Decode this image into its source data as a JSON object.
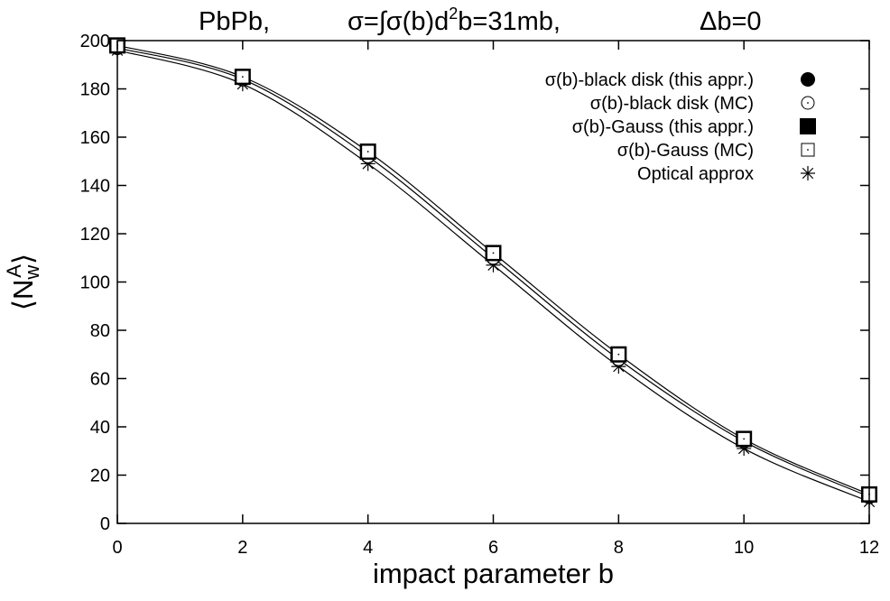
{
  "chart_data": {
    "type": "line",
    "title_parts": [
      "PbPb,",
      "σ=∫σ(b)d²b=31mb,",
      "Δb=0"
    ],
    "xlabel": "impact parameter b",
    "ylabel": "⟨N_w^A⟩",
    "xlim": [
      0,
      12
    ],
    "ylim": [
      0,
      200
    ],
    "x_ticks": [
      0,
      2,
      4,
      6,
      8,
      10,
      12
    ],
    "y_ticks": [
      0,
      20,
      40,
      60,
      80,
      100,
      120,
      140,
      160,
      180,
      200
    ],
    "x_tick_labels": [
      "0",
      "2",
      "4",
      "6",
      "8",
      "10",
      "12"
    ],
    "y_tick_labels": [
      "0",
      "20",
      "40",
      "60",
      "80",
      "100",
      "120",
      "140",
      "160",
      "180",
      "200"
    ],
    "grid": false,
    "legend_position": "top-right",
    "x": [
      0,
      2,
      4,
      6,
      8,
      10,
      12
    ],
    "series": [
      {
        "name": "σ(b)-black disk (this appr.)",
        "marker": "filled-circle",
        "values": [
          197,
          184,
          152,
          110,
          68,
          34,
          11
        ]
      },
      {
        "name": "σ(b)-black disk (MC)",
        "marker": "open-circle",
        "values": [
          197,
          184,
          152,
          110,
          68,
          34,
          11
        ]
      },
      {
        "name": "σ(b)-Gauss (this appr.)",
        "marker": "filled-square",
        "values": [
          198,
          185,
          154,
          112,
          70,
          35,
          12
        ]
      },
      {
        "name": "σ(b)-Gauss (MC)",
        "marker": "open-square",
        "values": [
          198,
          185,
          154,
          112,
          70,
          35,
          12
        ]
      },
      {
        "name": "Optical approx",
        "marker": "star",
        "values": [
          196,
          182,
          149,
          107,
          65,
          31,
          9
        ]
      }
    ],
    "curves": [
      {
        "values": [
          198,
          185,
          154,
          112,
          70,
          35,
          12
        ]
      },
      {
        "values": [
          197,
          184,
          152,
          110,
          68,
          34,
          11
        ]
      },
      {
        "values": [
          196,
          182,
          149,
          107,
          65,
          31,
          9
        ]
      }
    ]
  }
}
